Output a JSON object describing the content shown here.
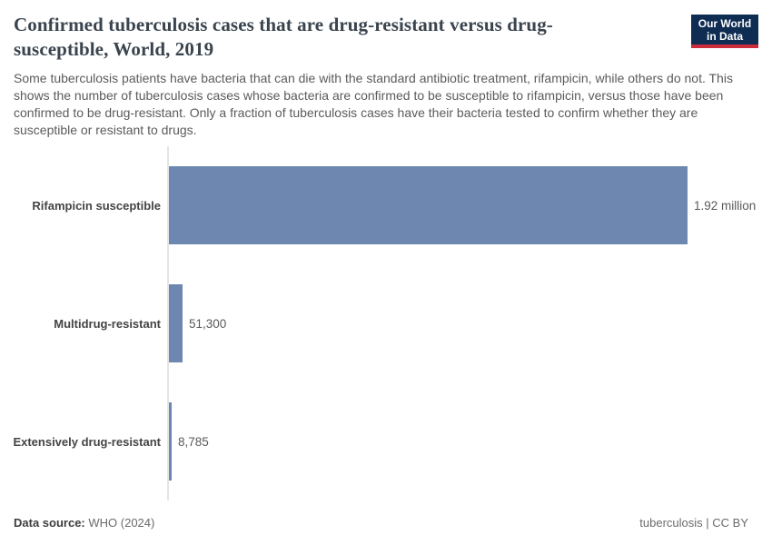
{
  "header": {
    "title": "Confirmed tuberculosis cases that are drug-resistant versus drug-susceptible, World, 2019",
    "subtitle": "Some tuberculosis patients have bacteria that can die with the standard antibiotic treatment, rifampicin, while others do not. This shows the number of tuberculosis cases whose bacteria are confirmed to be susceptible to rifampicin, versus those have been confirmed to be drug-resistant. Only a fraction of tuberculosis cases have their bacteria tested to confirm whether they are susceptible or resistant to drugs.",
    "logo": {
      "line1": "Our World",
      "line2": "in Data",
      "bg_color": "#0f2d52",
      "accent_color": "#cc2b3c"
    }
  },
  "chart_data": {
    "type": "bar",
    "orientation": "horizontal",
    "title": "Confirmed tuberculosis cases that are drug-resistant versus drug-susceptible, World, 2019",
    "categories": [
      "Rifampicin susceptible",
      "Multidrug-resistant",
      "Extensively drug-resistant"
    ],
    "values": [
      1920000,
      51300,
      8785
    ],
    "value_labels": [
      "1.92 million",
      "51,300",
      "8,785"
    ],
    "bar_color": "#6e87b0",
    "axis_color": "#e4e4e4",
    "xlim": [
      0,
      1920000
    ],
    "grid": false,
    "legend": "none"
  },
  "footer": {
    "datasource_label": "Data source:",
    "datasource_value": "WHO (2024)",
    "credit": "tuberculosis | CC BY"
  }
}
